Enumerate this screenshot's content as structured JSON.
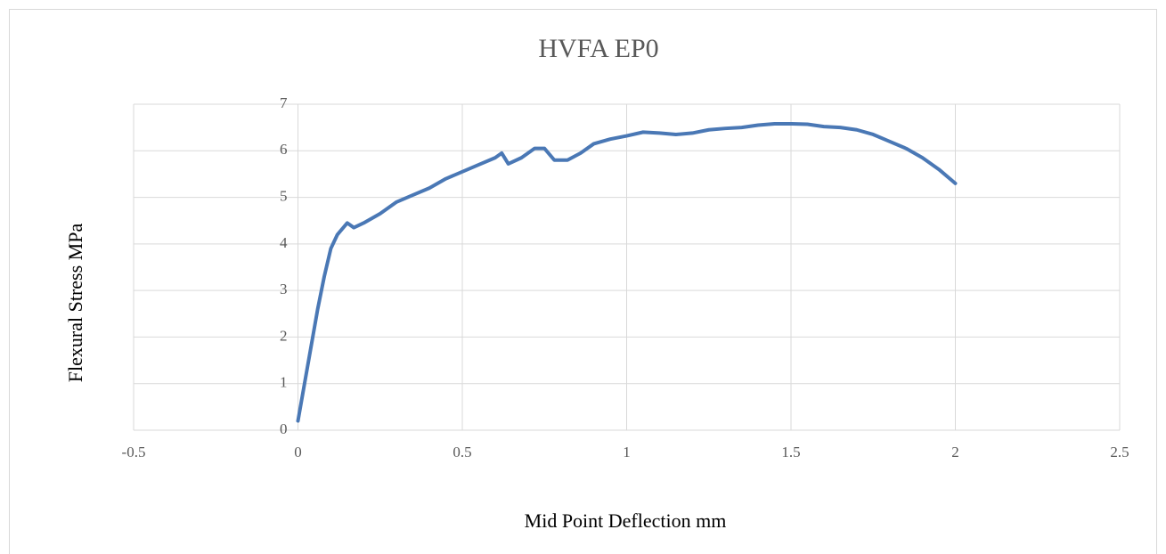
{
  "chart_data": {
    "type": "line",
    "title": "HVFA EP0",
    "x_label": "Mid Point Deflection mm",
    "y_label": "Flexural Stress MPa",
    "x": [
      0,
      0.02,
      0.04,
      0.06,
      0.08,
      0.1,
      0.12,
      0.15,
      0.17,
      0.2,
      0.25,
      0.3,
      0.35,
      0.4,
      0.45,
      0.5,
      0.55,
      0.6,
      0.62,
      0.64,
      0.68,
      0.72,
      0.75,
      0.78,
      0.82,
      0.86,
      0.9,
      0.95,
      1.0,
      1.05,
      1.1,
      1.15,
      1.2,
      1.25,
      1.3,
      1.35,
      1.4,
      1.45,
      1.5,
      1.55,
      1.6,
      1.65,
      1.7,
      1.75,
      1.8,
      1.85,
      1.9,
      1.95,
      2.0
    ],
    "series": [
      {
        "name": "Flexural Stress",
        "color": "#4a78b5",
        "values": [
          0.2,
          1.0,
          1.8,
          2.6,
          3.3,
          3.9,
          4.2,
          4.45,
          4.35,
          4.45,
          4.65,
          4.9,
          5.05,
          5.2,
          5.4,
          5.55,
          5.7,
          5.85,
          5.95,
          5.72,
          5.85,
          6.05,
          6.05,
          5.8,
          5.8,
          5.95,
          6.15,
          6.25,
          6.32,
          6.4,
          6.38,
          6.35,
          6.38,
          6.45,
          6.48,
          6.5,
          6.55,
          6.58,
          6.58,
          6.57,
          6.52,
          6.5,
          6.45,
          6.35,
          6.2,
          6.05,
          5.85,
          5.6,
          5.3
        ]
      }
    ],
    "xlim": [
      -0.5,
      2.5
    ],
    "xticks": [
      -0.5,
      0,
      0.5,
      1,
      1.5,
      2,
      2.5
    ],
    "ylim": [
      0,
      7
    ],
    "yticks": [
      0,
      1,
      2,
      3,
      4,
      5,
      6,
      7
    ],
    "grid": true
  }
}
